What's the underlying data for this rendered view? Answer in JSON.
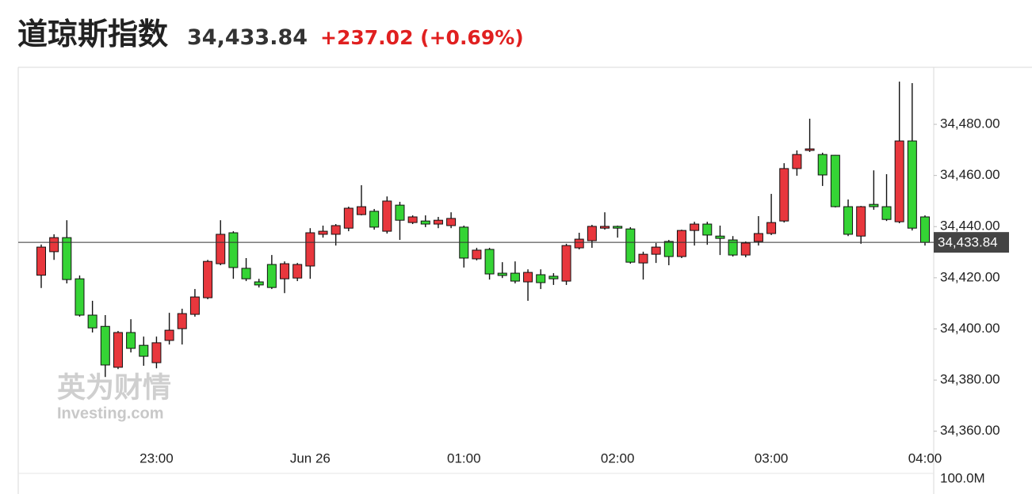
{
  "header": {
    "title": "道琼斯指数",
    "price": "34,433.84",
    "change": "+237.02 (+0.69%)"
  },
  "watermark": {
    "brand": "英为财情",
    "site": "Investing.com"
  },
  "chart_data": {
    "type": "candlestick",
    "categories": [
      null,
      null,
      null,
      null,
      null,
      null,
      null,
      null,
      null,
      "23:00",
      null,
      null,
      null,
      null,
      null,
      null,
      null,
      null,
      null,
      null,
      null,
      "Jun 26",
      null,
      null,
      null,
      null,
      null,
      null,
      null,
      null,
      null,
      null,
      null,
      "01:00",
      null,
      null,
      null,
      null,
      null,
      null,
      null,
      null,
      null,
      null,
      null,
      "02:00",
      null,
      null,
      null,
      null,
      null,
      null,
      null,
      null,
      null,
      null,
      null,
      "03:00",
      null,
      null,
      null,
      null,
      null,
      null,
      null,
      null,
      null,
      null,
      null,
      "04:00"
    ],
    "open": [
      34421,
      34430.2,
      34435.7,
      34419.6,
      34405.4,
      34401,
      34385,
      34398.6,
      34393.6,
      34386.8,
      34395.5,
      34400.1,
      34405.7,
      34412.2,
      34425.5,
      34437.6,
      34423.7,
      34418.4,
      34425.2,
      34419.6,
      34419.9,
      34424.6,
      34437,
      34437,
      34439.4,
      34444.7,
      34446,
      34438.2,
      34448.4,
      34441.6,
      34442.2,
      34441,
      34440.4,
      34439.8,
      34427.4,
      34431.1,
      34421.8,
      34421.8,
      34418.4,
      34421.2,
      34420.6,
      34418.7,
      34431.7,
      34434.5,
      34439.4,
      34440.1,
      34439.1,
      34425.8,
      34429.2,
      34434.2,
      34428.3,
      34438.5,
      34441,
      34436.3,
      34434.8,
      34428.9,
      34434.2,
      34437.3,
      34442.2,
      34462.7,
      34469.8,
      34468.2,
      34467.9,
      34447.8,
      34436.3,
      34448.7,
      34447.8,
      34441.9,
      34473.5,
      34443.8
    ],
    "high": [
      34433,
      34437,
      34442.5,
      34420.9,
      34411,
      34405.4,
      34399.2,
      34403.8,
      34397,
      34397,
      34406.3,
      34407.9,
      34415.6,
      34427,
      34442.5,
      34438.2,
      34427.7,
      34419.6,
      34428.9,
      34426.4,
      34425.8,
      34439.4,
      34440.4,
      34441,
      34447.8,
      34456.2,
      34446.9,
      34451.8,
      34449.7,
      34444.4,
      34444.4,
      34443.8,
      34445.6,
      34440.4,
      34431.7,
      34431.7,
      34426.1,
      34426.4,
      34423.3,
      34423.3,
      34421.8,
      34433.3,
      34437.6,
      34440.7,
      34445.6,
      34440.4,
      34439.8,
      34430.2,
      34433.6,
      34434.8,
      34438.8,
      34441.9,
      34441.9,
      34440.4,
      34436.3,
      34434.2,
      34444.1,
      34452.8,
      34464.8,
      34469.8,
      34482.2,
      34468.9,
      34468,
      34450.6,
      34448.1,
      34462,
      34460.5,
      34496.7,
      34496.1,
      34444.4
    ],
    "low": [
      34416,
      34427,
      34417.8,
      34404.8,
      34398.6,
      34381.2,
      34384.3,
      34390.8,
      34385.6,
      34384.6,
      34393.9,
      34393.9,
      34404.8,
      34411.6,
      34424.9,
      34419.6,
      34418.7,
      34416.2,
      34415.6,
      34414,
      34418.7,
      34419.6,
      34435.7,
      34432.6,
      34438.2,
      34444.4,
      34438.8,
      34437.3,
      34434.8,
      34441,
      34439.8,
      34439.4,
      34439.4,
      34424,
      34426.8,
      34419.3,
      34419.9,
      34417.8,
      34411,
      34415.6,
      34417.2,
      34417.2,
      34431.1,
      34431.7,
      34438.8,
      34435.7,
      34425.5,
      34419.3,
      34425.8,
      34424.9,
      34427.7,
      34432.6,
      34432.9,
      34428.9,
      34428.3,
      34428,
      34432.6,
      34436.7,
      34441.6,
      34459.9,
      34469.2,
      34455.9,
      34447.5,
      34436.3,
      34433.3,
      34446.6,
      34442.2,
      34441.3,
      34438.5,
      34432.6
    ],
    "close": [
      34432,
      34435.7,
      34419.3,
      34405.4,
      34400.4,
      34385.9,
      34398.6,
      34392.4,
      34389.3,
      34394.6,
      34399.5,
      34406,
      34412.5,
      34426.4,
      34437,
      34424,
      34419.6,
      34417.2,
      34416.2,
      34425.5,
      34425.2,
      34437.6,
      34438.2,
      34440.4,
      34447.2,
      34447.8,
      34439.8,
      34450,
      34442.5,
      34443.8,
      34441,
      34442.5,
      34443.2,
      34427.7,
      34430.8,
      34421.5,
      34420.9,
      34418.7,
      34422.1,
      34418.1,
      34419.6,
      34432.6,
      34435.1,
      34440.1,
      34440.1,
      34439.4,
      34426.1,
      34429.2,
      34432,
      34428.3,
      34438.5,
      34441,
      34436.7,
      34435.4,
      34428.9,
      34433.6,
      34437.3,
      34441.6,
      34462.7,
      34468.2,
      34470.4,
      34460.2,
      34447.8,
      34437,
      34447.8,
      34447.8,
      34442.8,
      34473.5,
      34439.4,
      34433.84
    ],
    "up_color": "#e8373d",
    "down_color": "#35d435",
    "ylim": [
      34343.5,
      34502.3
    ],
    "yticks": [
      {
        "value": 34360,
        "label": "34,360.00"
      },
      {
        "value": 34380,
        "label": "34,380.00"
      },
      {
        "value": 34400,
        "label": "34,400.00"
      },
      {
        "value": 34420,
        "label": "34,420.00"
      },
      {
        "value": 34440,
        "label": "34,440.00"
      },
      {
        "value": 34460,
        "label": "34,460.00"
      },
      {
        "value": 34480,
        "label": "34,480.00"
      }
    ],
    "last_price": {
      "value": 34433.84,
      "label": "34,433.84"
    },
    "y2ticks": [
      {
        "value": 100000000,
        "label": "100.0M"
      }
    ],
    "grid": false
  }
}
